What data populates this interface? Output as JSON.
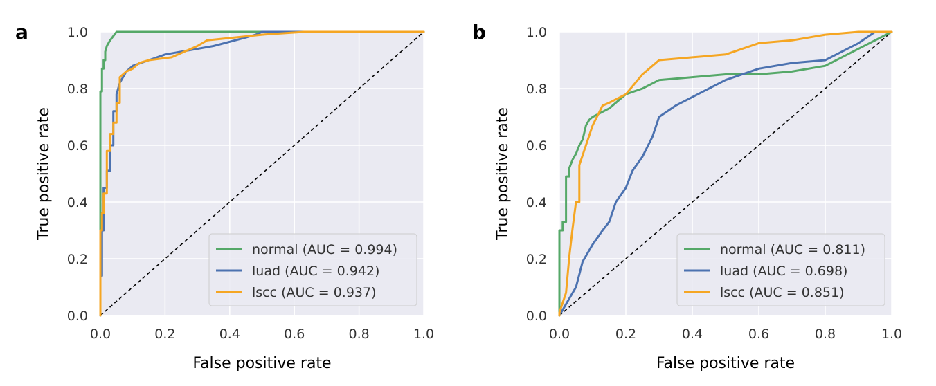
{
  "chart_data": [
    {
      "panel_label": "a",
      "type": "line",
      "title": "",
      "xlabel": "False positive rate",
      "ylabel": "True positive rate",
      "xlim": [
        0.0,
        1.0
      ],
      "ylim": [
        0.0,
        1.0
      ],
      "xticks": [
        "0.0",
        "0.2",
        "0.4",
        "0.6",
        "0.8",
        "1.0"
      ],
      "yticks": [
        "0.0",
        "0.2",
        "0.4",
        "0.6",
        "0.8",
        "1.0"
      ],
      "grid": true,
      "legend_position": "bottom-right",
      "series": [
        {
          "name": "normal (AUC = 0.994)",
          "color": "#55a868",
          "x": [
            0,
            0,
            0.005,
            0.005,
            0.01,
            0.01,
            0.015,
            0.015,
            0.02,
            0.03,
            0.05,
            0.19,
            1.0
          ],
          "y": [
            0,
            0.79,
            0.79,
            0.87,
            0.87,
            0.9,
            0.9,
            0.93,
            0.95,
            0.97,
            1.0,
            1.0,
            1.0
          ]
        },
        {
          "name": "luad (AUC = 0.942)",
          "color": "#4c72b0",
          "x": [
            0,
            0,
            0.005,
            0.005,
            0.01,
            0.01,
            0.02,
            0.02,
            0.03,
            0.03,
            0.04,
            0.04,
            0.05,
            0.05,
            0.06,
            0.08,
            0.1,
            0.15,
            0.2,
            0.25,
            0.3,
            0.35,
            0.45,
            0.48,
            0.5,
            1.0
          ],
          "y": [
            0,
            0.14,
            0.14,
            0.3,
            0.3,
            0.45,
            0.45,
            0.51,
            0.51,
            0.6,
            0.6,
            0.72,
            0.72,
            0.78,
            0.82,
            0.86,
            0.88,
            0.9,
            0.92,
            0.93,
            0.94,
            0.95,
            0.98,
            0.99,
            1.0,
            1.0
          ]
        },
        {
          "name": "lscc (AUC = 0.937)",
          "color": "#f5a623",
          "x": [
            0,
            0,
            0.005,
            0.005,
            0.01,
            0.01,
            0.02,
            0.02,
            0.03,
            0.03,
            0.04,
            0.04,
            0.05,
            0.05,
            0.06,
            0.06,
            0.08,
            0.1,
            0.12,
            0.15,
            0.22,
            0.3,
            0.33,
            0.5,
            0.63,
            1.0
          ],
          "y": [
            0,
            0.3,
            0.3,
            0.36,
            0.36,
            0.43,
            0.43,
            0.58,
            0.58,
            0.64,
            0.64,
            0.68,
            0.68,
            0.75,
            0.75,
            0.84,
            0.86,
            0.87,
            0.89,
            0.9,
            0.91,
            0.95,
            0.97,
            0.99,
            1.0,
            1.0
          ]
        }
      ],
      "diagonal": {
        "x": [
          0,
          1
        ],
        "y": [
          0,
          1
        ],
        "style": "dashed",
        "color": "#000000"
      }
    },
    {
      "panel_label": "b",
      "type": "line",
      "title": "",
      "xlabel": "False positive rate",
      "ylabel": "True positive rate",
      "xlim": [
        0.0,
        1.0
      ],
      "ylim": [
        0.0,
        1.0
      ],
      "xticks": [
        "0.0",
        "0.2",
        "0.4",
        "0.6",
        "0.8",
        "1.0"
      ],
      "yticks": [
        "0.0",
        "0.2",
        "0.4",
        "0.6",
        "0.8",
        "1.0"
      ],
      "grid": true,
      "legend_position": "bottom-right",
      "series": [
        {
          "name": "normal (AUC = 0.811)",
          "color": "#55a868",
          "x": [
            0,
            0,
            0.01,
            0.01,
            0.02,
            0.02,
            0.03,
            0.03,
            0.04,
            0.05,
            0.06,
            0.07,
            0.08,
            0.09,
            0.1,
            0.15,
            0.2,
            0.25,
            0.3,
            0.4,
            0.5,
            0.6,
            0.7,
            0.8,
            0.9,
            1.0
          ],
          "y": [
            0,
            0.3,
            0.3,
            0.33,
            0.33,
            0.49,
            0.49,
            0.52,
            0.55,
            0.57,
            0.6,
            0.62,
            0.67,
            0.69,
            0.7,
            0.73,
            0.78,
            0.8,
            0.83,
            0.84,
            0.85,
            0.85,
            0.86,
            0.88,
            0.94,
            1.0
          ]
        },
        {
          "name": "luad (AUC = 0.698)",
          "color": "#4c72b0",
          "x": [
            0,
            0.02,
            0.05,
            0.07,
            0.1,
            0.13,
            0.15,
            0.17,
            0.2,
            0.22,
            0.25,
            0.28,
            0.3,
            0.35,
            0.4,
            0.45,
            0.5,
            0.6,
            0.7,
            0.8,
            0.85,
            0.9,
            0.95
          ],
          "y": [
            0,
            0.04,
            0.1,
            0.19,
            0.25,
            0.3,
            0.33,
            0.4,
            0.45,
            0.51,
            0.56,
            0.63,
            0.7,
            0.74,
            0.77,
            0.8,
            0.83,
            0.87,
            0.89,
            0.9,
            0.93,
            0.96,
            1.0
          ]
        },
        {
          "name": "lscc (AUC = 0.851)",
          "color": "#f5a623",
          "x": [
            0,
            0,
            0.02,
            0.03,
            0.04,
            0.05,
            0.06,
            0.06,
            0.08,
            0.1,
            0.13,
            0.15,
            0.2,
            0.25,
            0.3,
            0.4,
            0.5,
            0.6,
            0.7,
            0.8,
            0.9,
            1.0
          ],
          "y": [
            0,
            0.01,
            0.08,
            0.21,
            0.31,
            0.4,
            0.4,
            0.53,
            0.6,
            0.67,
            0.74,
            0.75,
            0.78,
            0.85,
            0.9,
            0.91,
            0.92,
            0.96,
            0.97,
            0.99,
            1.0,
            1.0
          ]
        }
      ],
      "diagonal": {
        "x": [
          0,
          1
        ],
        "y": [
          0,
          1
        ],
        "style": "dashed",
        "color": "#000000"
      }
    }
  ]
}
